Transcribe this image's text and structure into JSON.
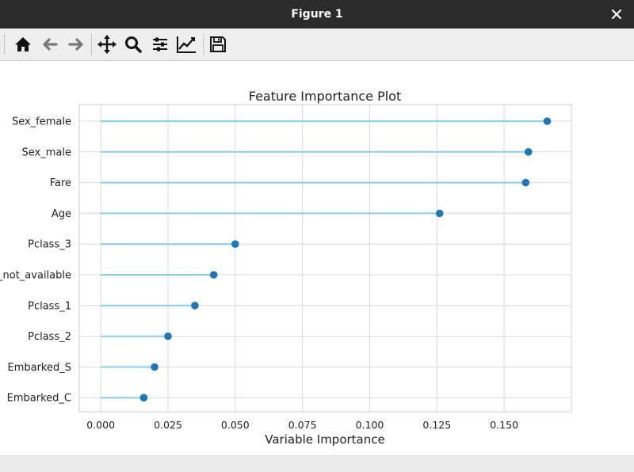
{
  "window": {
    "title": "Figure 1"
  },
  "toolbar": {
    "buttons": [
      "home-icon",
      "back-arrow-icon",
      "forward-arrow-icon",
      "pan-icon",
      "zoom-icon",
      "subplots-icon",
      "axes-edit-icon",
      "save-icon"
    ]
  },
  "colors": {
    "stem": "#87ceeb",
    "marker": "#1f77b4",
    "grid": "#d9d9d9",
    "titlebar": "#2b2b2b"
  },
  "chart_data": {
    "type": "lollipop",
    "title": "Feature Importance Plot",
    "xlabel": "Variable Importance",
    "ylabel": "",
    "xlim": [
      -0.008,
      0.175
    ],
    "xticks": [
      "0.000",
      "0.025",
      "0.050",
      "0.075",
      "0.100",
      "0.125",
      "0.150"
    ],
    "grid": true,
    "categories": [
      "Sex_female",
      "Sex_male",
      "Fare",
      "Age",
      "Pclass_3",
      "Cabin_not_available",
      "Pclass_1",
      "Pclass_2",
      "Embarked_S",
      "Embarked_C"
    ],
    "values": [
      0.166,
      0.159,
      0.158,
      0.126,
      0.05,
      0.042,
      0.035,
      0.025,
      0.02,
      0.016
    ]
  }
}
